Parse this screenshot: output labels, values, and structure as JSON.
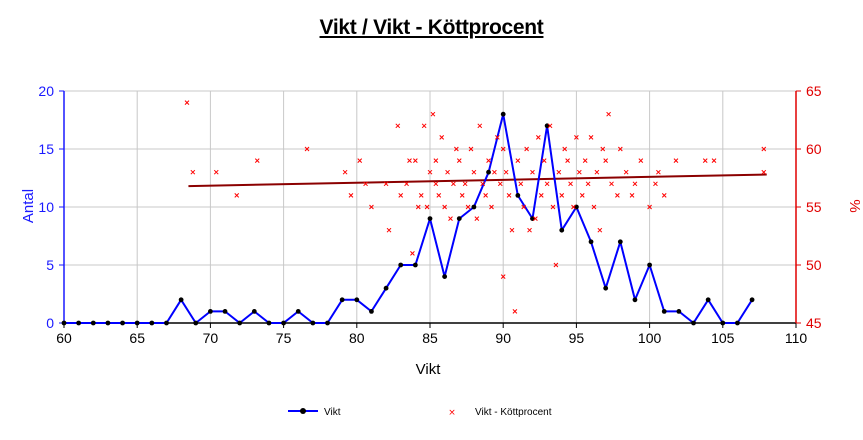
{
  "chart_data": {
    "type": "line",
    "title": "Vikt / Vikt - Köttprocent",
    "xlabel": "Vikt",
    "ylabel_left": "Antal",
    "ylabel_right": "%",
    "xlim": [
      60,
      110
    ],
    "ylim_left": [
      0,
      20
    ],
    "ylim_right": [
      45,
      65
    ],
    "x_ticks": [
      60,
      65,
      70,
      75,
      80,
      85,
      90,
      95,
      100,
      105,
      110
    ],
    "y_ticks_left": [
      0,
      5,
      10,
      15,
      20
    ],
    "y_ticks_right": [
      45,
      50,
      55,
      60,
      65
    ],
    "grid": true,
    "legend_position": "bottom",
    "colors": {
      "line": "#0000ff",
      "markers": "#000000",
      "scatter": "#ff0000",
      "trend": "#8b0000",
      "left_axis": "#1a1aff",
      "right_axis": "#e00000"
    },
    "series": [
      {
        "name": "Vikt",
        "type": "line",
        "axis": "left",
        "x": [
          60,
          61,
          62,
          63,
          64,
          65,
          66,
          67,
          68,
          69,
          70,
          71,
          72,
          73,
          74,
          75,
          76,
          77,
          78,
          79,
          80,
          81,
          82,
          83,
          84,
          85,
          86,
          87,
          88,
          89,
          90,
          91,
          92,
          93,
          94,
          95,
          96,
          97,
          98,
          99,
          100,
          101,
          102,
          103,
          104,
          105,
          106,
          107
        ],
        "values": [
          0,
          0,
          0,
          0,
          0,
          0,
          0,
          0,
          2,
          0,
          1,
          1,
          0,
          1,
          0,
          0,
          1,
          0,
          0,
          2,
          2,
          1,
          3,
          5,
          5,
          9,
          4,
          9,
          10,
          13,
          18,
          11,
          9,
          17,
          8,
          10,
          7,
          3,
          7,
          2,
          5,
          1,
          1,
          0,
          2,
          0,
          0,
          2
        ]
      },
      {
        "name": "Vikt - Köttprocent",
        "type": "scatter",
        "axis": "right",
        "points": [
          [
            68.4,
            64
          ],
          [
            68.8,
            58
          ],
          [
            70.4,
            58
          ],
          [
            71.8,
            56
          ],
          [
            73.2,
            59
          ],
          [
            76.6,
            60
          ],
          [
            79.2,
            58
          ],
          [
            79.6,
            56
          ],
          [
            80.2,
            59
          ],
          [
            80.6,
            57
          ],
          [
            81.0,
            55
          ],
          [
            82.0,
            57
          ],
          [
            82.2,
            53
          ],
          [
            82.8,
            62
          ],
          [
            83.0,
            56
          ],
          [
            83.4,
            57
          ],
          [
            83.6,
            59
          ],
          [
            83.8,
            51
          ],
          [
            84.0,
            59
          ],
          [
            84.2,
            55
          ],
          [
            84.4,
            56
          ],
          [
            84.6,
            62
          ],
          [
            84.8,
            55
          ],
          [
            85.0,
            58
          ],
          [
            85.2,
            63
          ],
          [
            85.4,
            59
          ],
          [
            85.4,
            57
          ],
          [
            85.6,
            56
          ],
          [
            85.8,
            61
          ],
          [
            86.0,
            55
          ],
          [
            86.2,
            58
          ],
          [
            86.4,
            54
          ],
          [
            86.6,
            57
          ],
          [
            86.8,
            60
          ],
          [
            87.0,
            59
          ],
          [
            87.2,
            56
          ],
          [
            87.4,
            57
          ],
          [
            87.6,
            55
          ],
          [
            87.8,
            60
          ],
          [
            88.0,
            58
          ],
          [
            88.2,
            54
          ],
          [
            88.4,
            62
          ],
          [
            88.6,
            57
          ],
          [
            88.8,
            56
          ],
          [
            89.0,
            59
          ],
          [
            89.2,
            55
          ],
          [
            89.4,
            58
          ],
          [
            89.6,
            61
          ],
          [
            89.8,
            57
          ],
          [
            90.0,
            60
          ],
          [
            90.0,
            49
          ],
          [
            90.2,
            58
          ],
          [
            90.4,
            56
          ],
          [
            90.6,
            53
          ],
          [
            90.8,
            46
          ],
          [
            91.0,
            59
          ],
          [
            91.2,
            57
          ],
          [
            91.4,
            55
          ],
          [
            91.6,
            60
          ],
          [
            91.8,
            53
          ],
          [
            92.0,
            58
          ],
          [
            92.2,
            54
          ],
          [
            92.4,
            61
          ],
          [
            92.6,
            56
          ],
          [
            92.8,
            59
          ],
          [
            93.0,
            57
          ],
          [
            93.2,
            62
          ],
          [
            93.4,
            55
          ],
          [
            93.6,
            50
          ],
          [
            93.8,
            58
          ],
          [
            94.0,
            56
          ],
          [
            94.2,
            60
          ],
          [
            94.4,
            59
          ],
          [
            94.6,
            57
          ],
          [
            94.8,
            55
          ],
          [
            95.0,
            61
          ],
          [
            95.2,
            58
          ],
          [
            95.4,
            56
          ],
          [
            95.6,
            59
          ],
          [
            95.8,
            57
          ],
          [
            96.0,
            61
          ],
          [
            96.2,
            55
          ],
          [
            96.4,
            58
          ],
          [
            96.6,
            53
          ],
          [
            96.8,
            60
          ],
          [
            97.0,
            59
          ],
          [
            97.2,
            63
          ],
          [
            97.4,
            57
          ],
          [
            97.8,
            56
          ],
          [
            98.0,
            60
          ],
          [
            98.4,
            58
          ],
          [
            98.8,
            56
          ],
          [
            99.0,
            57
          ],
          [
            99.4,
            59
          ],
          [
            100.0,
            55
          ],
          [
            100.4,
            57
          ],
          [
            100.6,
            58
          ],
          [
            101.0,
            56
          ],
          [
            101.8,
            59
          ],
          [
            103.8,
            59
          ],
          [
            104.4,
            59
          ],
          [
            107.8,
            60
          ],
          [
            107.8,
            58
          ]
        ]
      }
    ],
    "trendline": {
      "axis": "right",
      "x": [
        68.5,
        108
      ],
      "y": [
        56.8,
        57.8
      ]
    }
  },
  "legend": {
    "items": [
      {
        "label": "Vikt"
      },
      {
        "label": "Vikt - Köttprocent"
      }
    ]
  }
}
